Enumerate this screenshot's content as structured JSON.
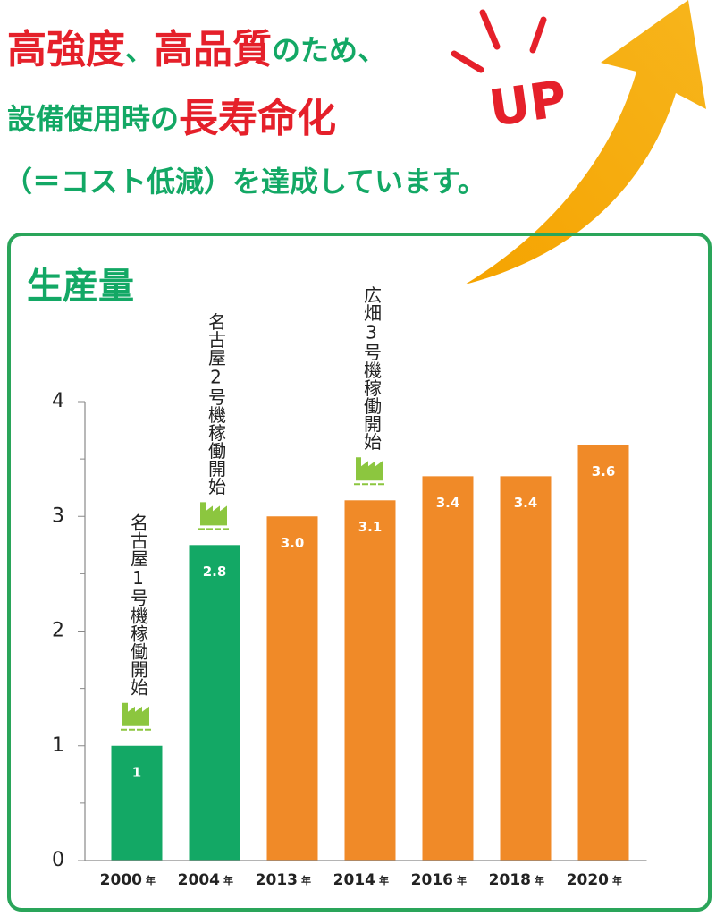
{
  "header": {
    "line1": [
      {
        "text": "高強度",
        "style": "accent"
      },
      {
        "text": "、",
        "style": "plain"
      },
      {
        "text": "高品質",
        "style": "accent"
      },
      {
        "text": "のため、",
        "style": "plain"
      }
    ],
    "line2": [
      {
        "text": "設備使用時の",
        "style": "plain"
      },
      {
        "text": "長寿命化",
        "style": "accent"
      }
    ],
    "line3": [
      {
        "text": "（＝コスト低減）を達成しています。",
        "style": "plain"
      }
    ],
    "badge": "UP"
  },
  "chart_data": {
    "type": "bar",
    "title": "生産量",
    "categories": [
      "2000",
      "2004",
      "2013",
      "2014",
      "2016",
      "2018",
      "2020"
    ],
    "category_unit": "年",
    "values": [
      1,
      2.75,
      3.0,
      3.14,
      3.35,
      3.35,
      3.62
    ],
    "value_labels": [
      "1",
      "2.8",
      "3.0",
      "3.1",
      "3.4",
      "3.4",
      "3.6"
    ],
    "colors": [
      "#13a865",
      "#13a865",
      "#f08a28",
      "#f08a28",
      "#f08a28",
      "#f08a28",
      "#f08a28"
    ],
    "ylim": [
      0,
      4
    ],
    "yticks": [
      0,
      1,
      2,
      3,
      4
    ],
    "minor_yticks": [
      0.5,
      1.5,
      2.5,
      3.5
    ],
    "annotations": [
      {
        "text": "名古屋1号機稼働開始",
        "category": "2000"
      },
      {
        "text": "名古屋2号機稼働開始",
        "category": "2004"
      },
      {
        "text": "広畑3号機稼働開始",
        "category": "2014"
      }
    ]
  }
}
